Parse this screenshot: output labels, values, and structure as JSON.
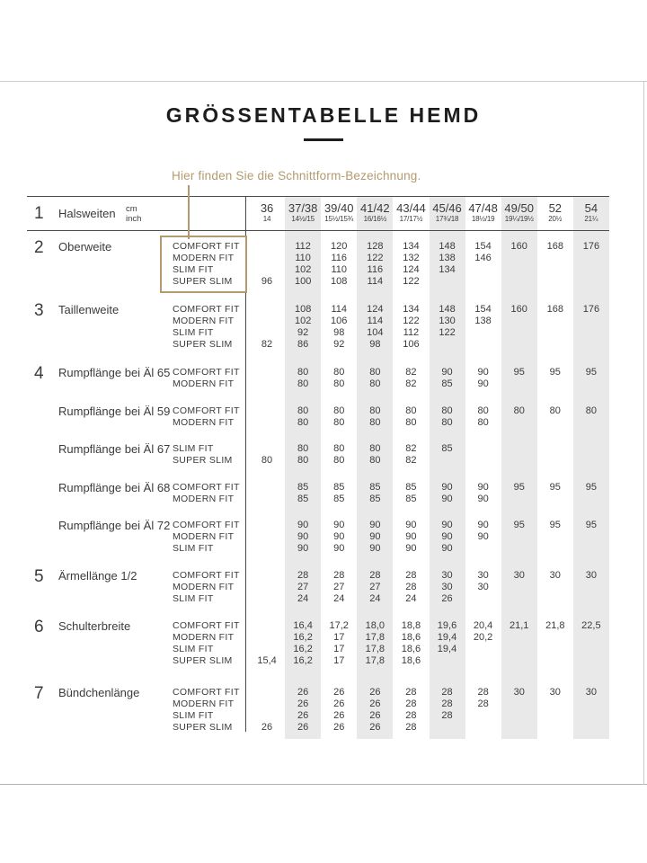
{
  "title": "GRÖSSENTABELLE HEMD",
  "hint": "Hier finden Sie die Schnittform-Bezeichnung.",
  "colors": {
    "accent": "#b49a6e",
    "band": "#e9e9e9",
    "text": "#3b3b3b",
    "title": "#1d1d1d",
    "rule": "#4a4a4a",
    "frame": "#cbcbcb"
  },
  "header": {
    "num": "1",
    "label": "Halsweiten",
    "unit_top": "cm",
    "unit_bottom": "inch",
    "columns": [
      {
        "cm": "36",
        "inch": "14"
      },
      {
        "cm": "37/38",
        "inch": "14½/15"
      },
      {
        "cm": "39/40",
        "inch": "15½/15¾"
      },
      {
        "cm": "41/42",
        "inch": "16/16½"
      },
      {
        "cm": "43/44",
        "inch": "17/17½"
      },
      {
        "cm": "45/46",
        "inch": "17¾/18"
      },
      {
        "cm": "47/48",
        "inch": "18½/19"
      },
      {
        "cm": "49/50",
        "inch": "19¼/19½"
      },
      {
        "cm": "52",
        "inch": "20½"
      },
      {
        "cm": "54",
        "inch": "21¼"
      }
    ]
  },
  "sections": [
    {
      "num": "2",
      "label": "Oberweite",
      "boxed": true,
      "rows": [
        {
          "fit": "COMFORT FIT",
          "values": [
            "",
            "112",
            "120",
            "128",
            "134",
            "148",
            "154",
            "160",
            "168",
            "176"
          ]
        },
        {
          "fit": "MODERN FIT",
          "values": [
            "",
            "110",
            "116",
            "122",
            "132",
            "138",
            "146",
            "",
            "",
            ""
          ]
        },
        {
          "fit": "SLIM FIT",
          "values": [
            "",
            "102",
            "110",
            "116",
            "124",
            "134",
            "",
            "",
            "",
            ""
          ]
        },
        {
          "fit": "SUPER SLIM",
          "values": [
            "96",
            "100",
            "108",
            "114",
            "122",
            "",
            "",
            "",
            "",
            ""
          ]
        }
      ]
    },
    {
      "num": "3",
      "label": "Taillenweite",
      "rows": [
        {
          "fit": "COMFORT FIT",
          "values": [
            "",
            "108",
            "114",
            "124",
            "134",
            "148",
            "154",
            "160",
            "168",
            "176"
          ]
        },
        {
          "fit": "MODERN FIT",
          "values": [
            "",
            "102",
            "106",
            "114",
            "122",
            "130",
            "138",
            "",
            "",
            ""
          ]
        },
        {
          "fit": "SLIM FIT",
          "values": [
            "",
            "92",
            "98",
            "104",
            "112",
            "122",
            "",
            "",
            "",
            ""
          ]
        },
        {
          "fit": "SUPER SLIM",
          "values": [
            "82",
            "86",
            "92",
            "98",
            "106",
            "",
            "",
            "",
            "",
            ""
          ]
        }
      ]
    },
    {
      "num": "4",
      "label": "Rumpflänge bei Äl 65",
      "rows": [
        {
          "fit": "COMFORT FIT",
          "values": [
            "",
            "80",
            "80",
            "80",
            "82",
            "90",
            "90",
            "95",
            "95",
            "95"
          ]
        },
        {
          "fit": "MODERN FIT",
          "values": [
            "",
            "80",
            "80",
            "80",
            "82",
            "85",
            "90",
            "",
            "",
            ""
          ]
        }
      ]
    },
    {
      "num": "",
      "label": "Rumpflänge bei Äl 59",
      "rows": [
        {
          "fit": "COMFORT FIT",
          "values": [
            "",
            "80",
            "80",
            "80",
            "80",
            "80",
            "80",
            "80",
            "80",
            "80"
          ]
        },
        {
          "fit": "MODERN FIT",
          "values": [
            "",
            "80",
            "80",
            "80",
            "80",
            "80",
            "80",
            "",
            "",
            ""
          ]
        }
      ]
    },
    {
      "num": "",
      "label": "Rumpflänge bei Äl 67",
      "rows": [
        {
          "fit": "SLIM FIT",
          "values": [
            "",
            "80",
            "80",
            "80",
            "82",
            "85",
            "",
            "",
            "",
            ""
          ]
        },
        {
          "fit": "SUPER SLIM",
          "values": [
            "80",
            "80",
            "80",
            "80",
            "82",
            "",
            "",
            "",
            "",
            ""
          ]
        }
      ]
    },
    {
      "num": "",
      "label": "Rumpflänge bei Äl 68",
      "rows": [
        {
          "fit": "COMFORT FIT",
          "values": [
            "",
            "85",
            "85",
            "85",
            "85",
            "90",
            "90",
            "95",
            "95",
            "95"
          ]
        },
        {
          "fit": "MODERN FIT",
          "values": [
            "",
            "85",
            "85",
            "85",
            "85",
            "90",
            "90",
            "",
            "",
            ""
          ]
        }
      ]
    },
    {
      "num": "",
      "label": "Rumpflänge bei Äl 72",
      "rows": [
        {
          "fit": "COMFORT FIT",
          "values": [
            "",
            "90",
            "90",
            "90",
            "90",
            "90",
            "90",
            "95",
            "95",
            "95"
          ]
        },
        {
          "fit": "MODERN FIT",
          "values": [
            "",
            "90",
            "90",
            "90",
            "90",
            "90",
            "90",
            "",
            "",
            ""
          ]
        },
        {
          "fit": "SLIM FIT",
          "values": [
            "",
            "90",
            "90",
            "90",
            "90",
            "90",
            "",
            "",
            "",
            ""
          ]
        }
      ]
    },
    {
      "num": "5",
      "label": "Ärmellänge 1/2",
      "rows": [
        {
          "fit": "COMFORT FIT",
          "values": [
            "",
            "28",
            "28",
            "28",
            "28",
            "30",
            "30",
            "30",
            "30",
            "30"
          ]
        },
        {
          "fit": "MODERN FIT",
          "values": [
            "",
            "27",
            "27",
            "27",
            "28",
            "30",
            "30",
            "",
            "",
            ""
          ]
        },
        {
          "fit": "SLIM FIT",
          "values": [
            "",
            "24",
            "24",
            "24",
            "24",
            "26",
            "",
            "",
            "",
            ""
          ]
        }
      ]
    },
    {
      "num": "6",
      "label": "Schulterbreite",
      "rows": [
        {
          "fit": "COMFORT FIT",
          "values": [
            "",
            "16,4",
            "17,2",
            "18,0",
            "18,8",
            "19,6",
            "20,4",
            "21,1",
            "21,8",
            "22,5"
          ]
        },
        {
          "fit": "MODERN FIT",
          "values": [
            "",
            "16,2",
            "17",
            "17,8",
            "18,6",
            "19,4",
            "20,2",
            "",
            "",
            ""
          ]
        },
        {
          "fit": "SLIM FIT",
          "values": [
            "",
            "16,2",
            "17",
            "17,8",
            "18,6",
            "19,4",
            "",
            "",
            "",
            ""
          ]
        },
        {
          "fit": "SUPER SLIM",
          "values": [
            "15,4",
            "16,2",
            "17",
            "17,8",
            "18,6",
            "",
            "",
            "",
            "",
            ""
          ]
        }
      ]
    },
    {
      "num": "7",
      "label": "Bündchenlänge",
      "rows": [
        {
          "fit": "COMFORT FIT",
          "values": [
            "",
            "26",
            "26",
            "26",
            "28",
            "28",
            "28",
            "30",
            "30",
            "30"
          ]
        },
        {
          "fit": "MODERN FIT",
          "values": [
            "",
            "26",
            "26",
            "26",
            "28",
            "28",
            "28",
            "",
            "",
            ""
          ]
        },
        {
          "fit": "SLIM FIT",
          "values": [
            "",
            "26",
            "26",
            "26",
            "28",
            "28",
            "",
            "",
            "",
            ""
          ]
        },
        {
          "fit": "SUPER SLIM",
          "values": [
            "26",
            "26",
            "26",
            "26",
            "28",
            "",
            "",
            "",
            "",
            ""
          ]
        }
      ]
    }
  ]
}
